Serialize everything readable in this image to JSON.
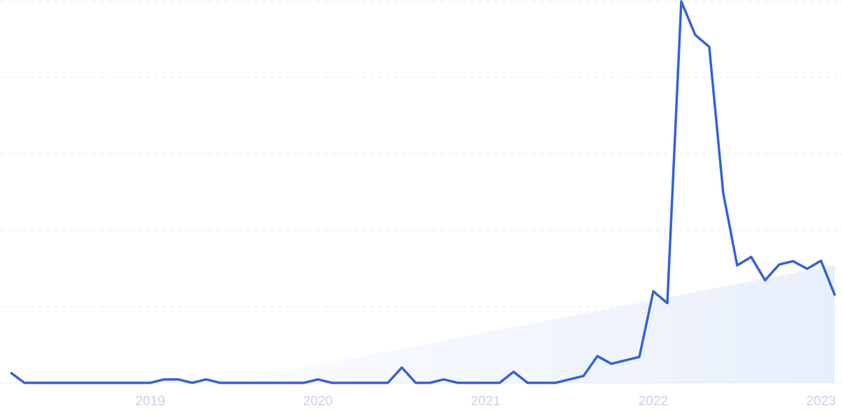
{
  "chart_data": {
    "type": "line",
    "categories": [
      null,
      null,
      null,
      null,
      null,
      null,
      null,
      null,
      null,
      null,
      "2019",
      null,
      null,
      null,
      null,
      null,
      null,
      null,
      null,
      null,
      null,
      null,
      "2020",
      null,
      null,
      null,
      null,
      null,
      null,
      null,
      null,
      null,
      null,
      null,
      "2021",
      null,
      null,
      null,
      null,
      null,
      null,
      null,
      null,
      null,
      null,
      null,
      "2022",
      null,
      null,
      null,
      null,
      null,
      null,
      null,
      null,
      null,
      null,
      null,
      "2023",
      null
    ],
    "values": [
      2.7,
      0,
      0,
      0,
      0,
      0,
      0,
      0,
      0,
      0,
      0,
      0.9,
      0.9,
      0,
      0.9,
      0,
      0,
      0,
      0,
      0,
      0,
      0,
      0.9,
      0,
      0,
      0,
      0,
      0,
      4,
      0,
      0,
      0.9,
      0,
      0,
      0,
      0,
      2.9,
      0,
      0,
      0,
      0.9,
      1.8,
      7,
      5,
      5.9,
      6.8,
      24,
      20.9,
      100,
      91.2,
      88.1,
      49.8,
      30.8,
      33,
      26.9,
      31,
      31.9,
      29.9,
      32,
      22.9
    ],
    "color": "#3563e0",
    "ylim": [
      0,
      100
    ],
    "yticks": [
      0,
      20,
      40,
      60,
      80,
      100
    ],
    "grid": true
  }
}
